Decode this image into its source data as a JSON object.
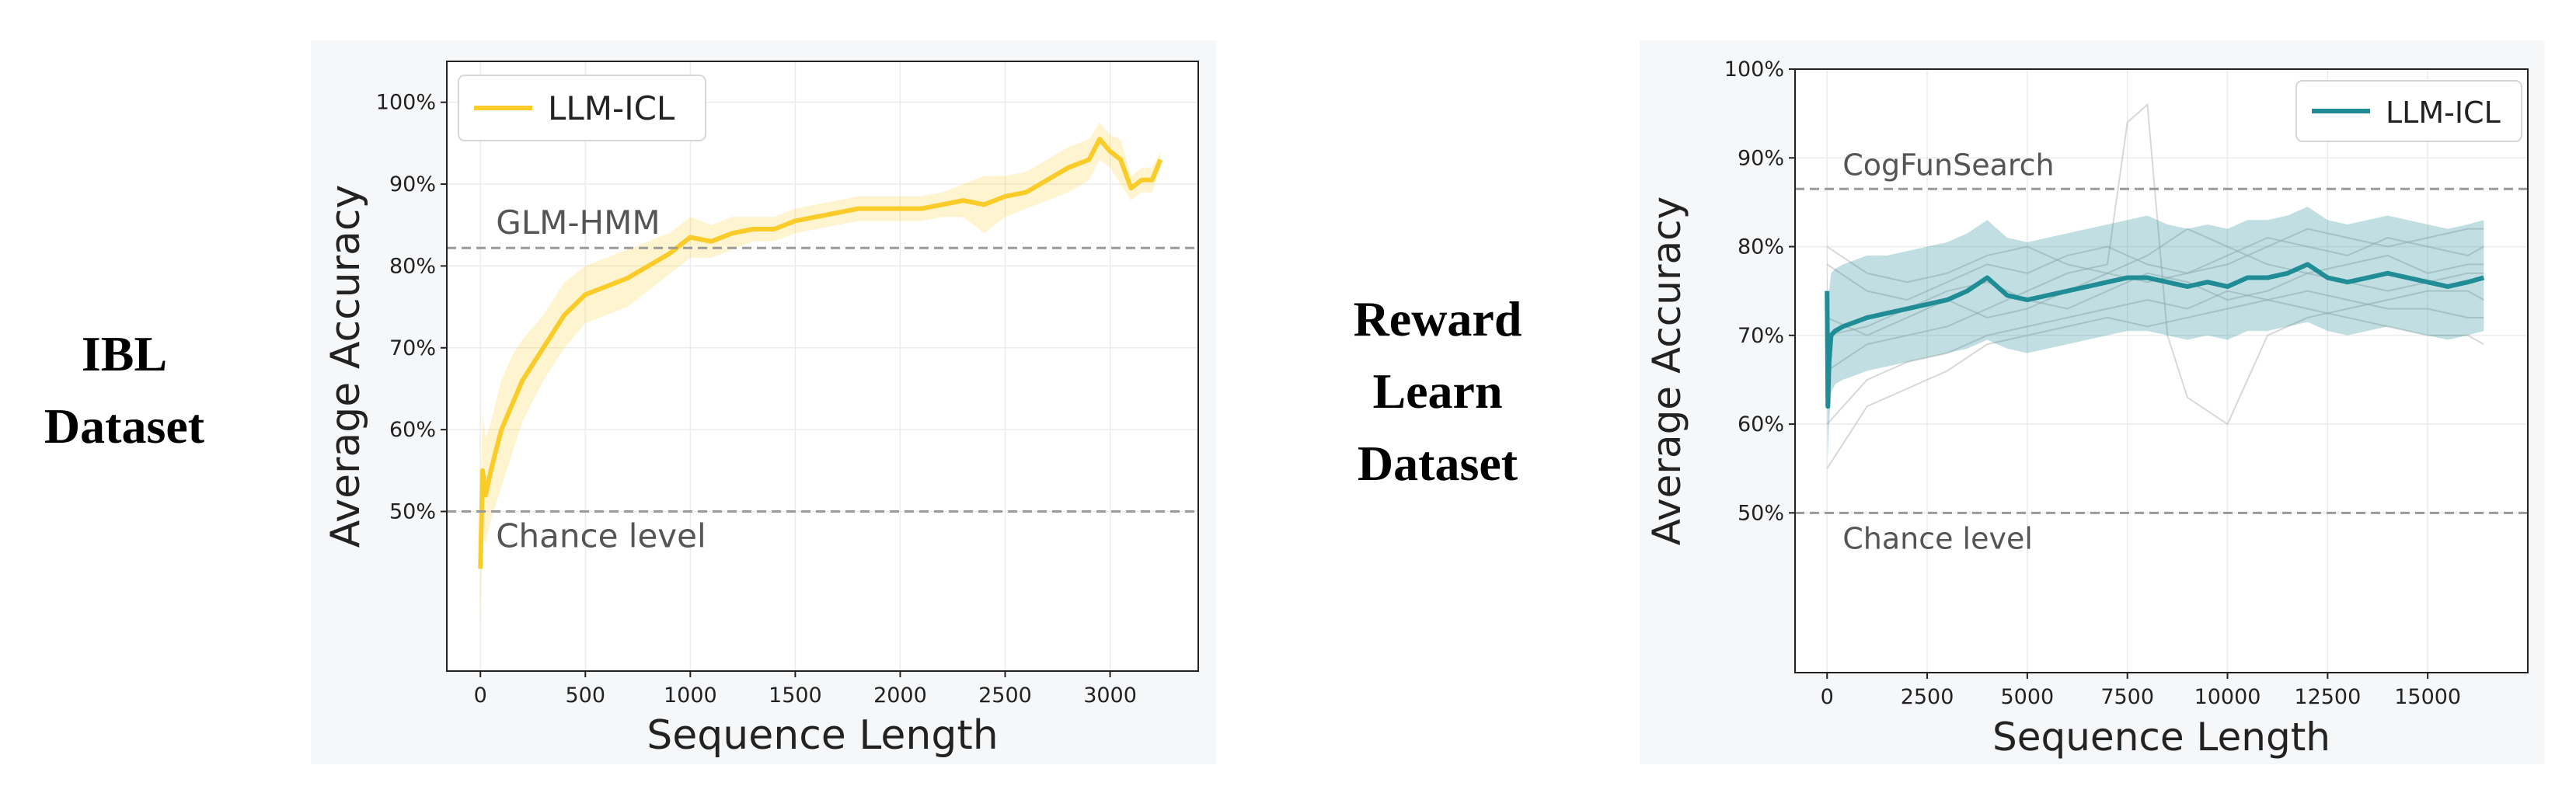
{
  "left_label": {
    "line1": "IBL",
    "line2": "Dataset"
  },
  "right_label": {
    "line1": "Reward",
    "line2": "Learn",
    "line3": "Dataset"
  },
  "chart_data": [
    {
      "type": "line",
      "xlabel": "Sequence Length",
      "ylabel": "Average Accuracy",
      "xlim": [
        -160,
        3420
      ],
      "ylim": [
        0.305,
        1.05
      ],
      "x_ticks": [
        0,
        500,
        1000,
        1500,
        2000,
        2500,
        3000
      ],
      "x_tick_labels": [
        "0",
        "500",
        "1000",
        "1500",
        "2000",
        "2500",
        "3000"
      ],
      "y_ticks": [
        0.5,
        0.6,
        0.7,
        0.8,
        0.9,
        1.0
      ],
      "y_tick_labels": [
        "50%",
        "60%",
        "70%",
        "80%",
        "90%",
        "100%"
      ],
      "grid": true,
      "legend_position": "top-left",
      "reference_lines": [
        {
          "y": 0.822,
          "label": "GLM-HMM"
        },
        {
          "y": 0.5,
          "label": "Chance level"
        }
      ],
      "series": [
        {
          "name": "LLM-ICL",
          "color": "#f9cc2a",
          "x": [
            0,
            10,
            25,
            50,
            100,
            150,
            200,
            300,
            400,
            500,
            600,
            700,
            800,
            900,
            1000,
            1100,
            1200,
            1300,
            1400,
            1500,
            1600,
            1700,
            1800,
            1900,
            2000,
            2100,
            2200,
            2300,
            2400,
            2500,
            2600,
            2700,
            2800,
            2900,
            2950,
            3000,
            3050,
            3100,
            3150,
            3200,
            3240
          ],
          "values": [
            0.43,
            0.55,
            0.52,
            0.55,
            0.6,
            0.63,
            0.66,
            0.7,
            0.74,
            0.765,
            0.775,
            0.785,
            0.8,
            0.815,
            0.835,
            0.83,
            0.84,
            0.845,
            0.845,
            0.855,
            0.86,
            0.865,
            0.87,
            0.87,
            0.87,
            0.87,
            0.875,
            0.88,
            0.875,
            0.885,
            0.89,
            0.905,
            0.92,
            0.93,
            0.955,
            0.94,
            0.93,
            0.895,
            0.905,
            0.905,
            0.93
          ],
          "lower": [
            0.36,
            0.47,
            0.46,
            0.49,
            0.53,
            0.57,
            0.61,
            0.66,
            0.7,
            0.73,
            0.74,
            0.75,
            0.77,
            0.79,
            0.81,
            0.81,
            0.82,
            0.83,
            0.83,
            0.84,
            0.845,
            0.85,
            0.855,
            0.855,
            0.855,
            0.855,
            0.86,
            0.86,
            0.84,
            0.86,
            0.87,
            0.88,
            0.89,
            0.905,
            0.93,
            0.92,
            0.9,
            0.88,
            0.89,
            0.89,
            0.92
          ],
          "upper": [
            0.5,
            0.62,
            0.59,
            0.61,
            0.66,
            0.69,
            0.71,
            0.74,
            0.78,
            0.8,
            0.81,
            0.82,
            0.83,
            0.84,
            0.86,
            0.85,
            0.86,
            0.86,
            0.86,
            0.87,
            0.875,
            0.88,
            0.885,
            0.885,
            0.885,
            0.885,
            0.89,
            0.9,
            0.91,
            0.91,
            0.915,
            0.93,
            0.945,
            0.955,
            0.975,
            0.96,
            0.955,
            0.91,
            0.92,
            0.92,
            0.94
          ]
        }
      ]
    },
    {
      "type": "line",
      "xlabel": "Sequence Length",
      "ylabel": "Average Accuracy",
      "xlim": [
        -800,
        17500
      ],
      "ylim": [
        0.32,
        1.0
      ],
      "x_ticks": [
        0,
        2500,
        5000,
        7500,
        10000,
        12500,
        15000
      ],
      "x_tick_labels": [
        "0",
        "2500",
        "5000",
        "7500",
        "10000",
        "12500",
        "15000"
      ],
      "y_ticks": [
        0.5,
        0.6,
        0.7,
        0.8,
        0.9,
        1.0
      ],
      "y_tick_labels": [
        "50%",
        "60%",
        "70%",
        "80%",
        "90%",
        "100%"
      ],
      "grid": true,
      "legend_position": "top-right",
      "reference_lines": [
        {
          "y": 0.865,
          "label": "CogFunSearch"
        },
        {
          "y": 0.5,
          "label": "Chance level"
        }
      ],
      "series": [
        {
          "name": "LLM-ICL",
          "color": "#1f8c96",
          "x": [
            0,
            20,
            50,
            100,
            200,
            400,
            700,
            1000,
            1500,
            2000,
            2500,
            3000,
            3500,
            4000,
            4500,
            5000,
            5500,
            6000,
            6500,
            7000,
            7500,
            8000,
            8500,
            9000,
            9500,
            10000,
            10500,
            11000,
            11500,
            12000,
            12500,
            13000,
            13500,
            14000,
            14500,
            15000,
            15500,
            16000,
            16400
          ],
          "values": [
            0.75,
            0.62,
            0.67,
            0.7,
            0.705,
            0.71,
            0.715,
            0.72,
            0.725,
            0.73,
            0.735,
            0.74,
            0.75,
            0.765,
            0.745,
            0.74,
            0.745,
            0.75,
            0.755,
            0.76,
            0.765,
            0.765,
            0.76,
            0.755,
            0.76,
            0.755,
            0.765,
            0.765,
            0.77,
            0.78,
            0.765,
            0.76,
            0.765,
            0.77,
            0.765,
            0.76,
            0.755,
            0.76,
            0.765
          ],
          "lower": [
            0.65,
            0.56,
            0.6,
            0.635,
            0.645,
            0.65,
            0.655,
            0.66,
            0.665,
            0.67,
            0.675,
            0.68,
            0.685,
            0.695,
            0.685,
            0.68,
            0.685,
            0.69,
            0.695,
            0.7,
            0.705,
            0.705,
            0.7,
            0.695,
            0.7,
            0.695,
            0.705,
            0.705,
            0.71,
            0.715,
            0.705,
            0.7,
            0.705,
            0.71,
            0.705,
            0.7,
            0.695,
            0.7,
            0.705
          ],
          "upper": [
            0.82,
            0.72,
            0.75,
            0.77,
            0.775,
            0.78,
            0.785,
            0.79,
            0.79,
            0.795,
            0.8,
            0.805,
            0.815,
            0.83,
            0.81,
            0.805,
            0.81,
            0.815,
            0.82,
            0.825,
            0.83,
            0.835,
            0.825,
            0.82,
            0.825,
            0.82,
            0.83,
            0.83,
            0.835,
            0.845,
            0.83,
            0.825,
            0.83,
            0.835,
            0.83,
            0.825,
            0.82,
            0.825,
            0.83
          ]
        }
      ],
      "background_traces": [
        {
          "x": [
            0,
            1000,
            2000,
            3000,
            4000,
            5000,
            6000,
            7000,
            7500,
            8000,
            8500,
            9000,
            10000,
            11000,
            12000,
            13000,
            14000,
            15000,
            16000,
            16400
          ],
          "values": [
            0.66,
            0.69,
            0.7,
            0.71,
            0.73,
            0.75,
            0.77,
            0.78,
            0.94,
            0.96,
            0.7,
            0.63,
            0.6,
            0.7,
            0.72,
            0.73,
            0.74,
            0.75,
            0.75,
            0.74
          ]
        },
        {
          "x": [
            0,
            1000,
            2000,
            3000,
            4000,
            5000,
            6000,
            7000,
            8000,
            9000,
            10000,
            11000,
            12000,
            13000,
            14000,
            15000,
            16000,
            16400
          ],
          "values": [
            0.78,
            0.75,
            0.74,
            0.76,
            0.78,
            0.77,
            0.79,
            0.8,
            0.78,
            0.77,
            0.79,
            0.81,
            0.8,
            0.79,
            0.81,
            0.8,
            0.79,
            0.8
          ]
        },
        {
          "x": [
            0,
            1000,
            2000,
            3000,
            4000,
            5000,
            6000,
            7000,
            8000,
            9000,
            10000,
            11000,
            12000,
            13000,
            14000,
            15000,
            16000,
            16400
          ],
          "values": [
            0.6,
            0.65,
            0.67,
            0.68,
            0.7,
            0.71,
            0.72,
            0.73,
            0.74,
            0.73,
            0.75,
            0.74,
            0.73,
            0.72,
            0.71,
            0.7,
            0.7,
            0.69
          ]
        },
        {
          "x": [
            0,
            1000,
            2000,
            3000,
            4000,
            5000,
            6000,
            7000,
            8000,
            9000,
            10000,
            11000,
            12000,
            13000,
            14000,
            15000,
            16000,
            16400
          ],
          "values": [
            0.72,
            0.7,
            0.72,
            0.74,
            0.72,
            0.73,
            0.75,
            0.77,
            0.79,
            0.82,
            0.8,
            0.78,
            0.77,
            0.78,
            0.79,
            0.77,
            0.78,
            0.78
          ]
        },
        {
          "x": [
            0,
            1000,
            2000,
            3000,
            4000,
            5000,
            6000,
            7000,
            8000,
            9000,
            10000,
            11000,
            12000,
            13000,
            14000,
            15000,
            16000,
            16400
          ],
          "values": [
            0.55,
            0.62,
            0.64,
            0.66,
            0.69,
            0.7,
            0.71,
            0.72,
            0.71,
            0.72,
            0.73,
            0.74,
            0.75,
            0.74,
            0.73,
            0.73,
            0.72,
            0.72
          ]
        },
        {
          "x": [
            0,
            1000,
            2000,
            3000,
            4000,
            5000,
            6000,
            7000,
            8000,
            9000,
            10000,
            11000,
            12000,
            13000,
            14000,
            15000,
            16000,
            16400
          ],
          "values": [
            0.8,
            0.77,
            0.76,
            0.77,
            0.79,
            0.8,
            0.78,
            0.77,
            0.76,
            0.77,
            0.78,
            0.8,
            0.82,
            0.81,
            0.8,
            0.81,
            0.82,
            0.82
          ]
        },
        {
          "x": [
            0,
            1000,
            2000,
            3000,
            4000,
            5000,
            6000,
            7000,
            8000,
            9000,
            10000,
            11000,
            12000,
            13000,
            14000,
            15000,
            16000,
            16400
          ],
          "values": [
            0.7,
            0.71,
            0.73,
            0.75,
            0.76,
            0.74,
            0.73,
            0.75,
            0.77,
            0.76,
            0.74,
            0.75,
            0.77,
            0.76,
            0.75,
            0.76,
            0.77,
            0.77
          ]
        }
      ]
    }
  ]
}
